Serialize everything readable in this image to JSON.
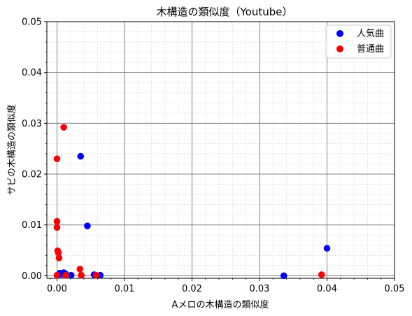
{
  "chart_data": {
    "type": "scatter",
    "title": "木構造の類似度（Youtube）",
    "xlabel": "Aメロの木構造の類似度",
    "ylabel": "サビの木構造の類似度",
    "xlim": [
      -0.0015,
      0.05
    ],
    "ylim": [
      -0.0005,
      0.05
    ],
    "xticks": [
      0.0,
      0.01,
      0.02,
      0.03,
      0.04,
      0.05
    ],
    "yticks": [
      0.0,
      0.01,
      0.02,
      0.03,
      0.04,
      0.05
    ],
    "xtick_labels": [
      "0.00",
      "0.01",
      "0.02",
      "0.03",
      "0.04",
      "0.05"
    ],
    "ytick_labels": [
      "0.00",
      "0.01",
      "0.02",
      "0.03",
      "0.04",
      "0.05"
    ],
    "grid": true,
    "minor_grid": true,
    "legend_position": "top-right",
    "series": [
      {
        "name": "人気曲",
        "color": "#0000ff",
        "points": [
          [
            0.0001,
            0.0001
          ],
          [
            0.0004,
            0.0005
          ],
          [
            0.0007,
            0.0003
          ],
          [
            0.001,
            0.0006
          ],
          [
            0.0013,
            0.0003
          ],
          [
            0.0021,
            0.0001
          ],
          [
            0.0035,
            0.0235
          ],
          [
            0.0045,
            0.0098
          ],
          [
            0.0055,
            0.0002
          ],
          [
            0.0064,
            0.0001
          ],
          [
            0.0336,
            0.0
          ],
          [
            0.04,
            0.0054
          ]
        ]
      },
      {
        "name": "普通曲",
        "color": "#ff0000",
        "points": [
          [
            0.0,
            0.023
          ],
          [
            0.0,
            0.0107
          ],
          [
            0.0,
            0.0095
          ],
          [
            0.0001,
            0.0049
          ],
          [
            0.0002,
            0.0045
          ],
          [
            0.0003,
            0.0035
          ],
          [
            0.0,
            0.0001
          ],
          [
            0.001,
            0.0292
          ],
          [
            0.0013,
            0.0001
          ],
          [
            0.0034,
            0.0013
          ],
          [
            0.0036,
            0.0001
          ],
          [
            0.0058,
            0.0001
          ],
          [
            0.0392,
            0.0002
          ]
        ]
      }
    ]
  }
}
